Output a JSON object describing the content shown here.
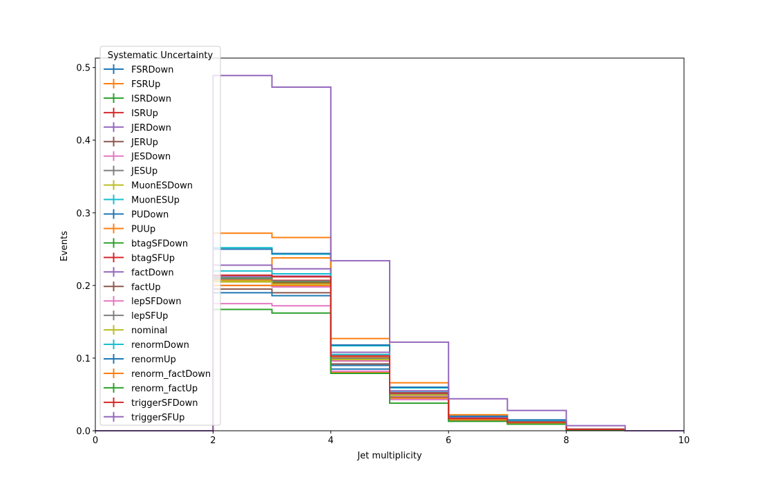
{
  "chart_data": {
    "type": "line",
    "drawstyle": "steps-post",
    "xlabel": "Jet multiplicity",
    "ylabel": "Events",
    "xlim": [
      0,
      10
    ],
    "ylim": [
      0,
      0.513
    ],
    "xticks": [
      "0",
      "2",
      "4",
      "6",
      "8",
      "10"
    ],
    "yticks": [
      "0.0",
      "0.1",
      "0.2",
      "0.3",
      "0.4",
      "0.5"
    ],
    "grid": false,
    "legend": {
      "title": "Systematic Uncertainty",
      "placement": "upper-left"
    },
    "bin_edges": [
      0,
      1,
      2,
      3,
      4,
      5,
      6,
      7,
      8,
      9,
      10
    ],
    "series": [
      {
        "name": "FSRDown",
        "color": "#1f77b4",
        "values": [
          0,
          0,
          0.2,
          0.2,
          0.085,
          0.048,
          0.017,
          0.012,
          0.002,
          0
        ]
      },
      {
        "name": "FSRUp",
        "color": "#ff7f0e",
        "values": [
          0,
          0,
          0.272,
          0.266,
          0.127,
          0.066,
          0.022,
          0.014,
          0.002,
          0
        ]
      },
      {
        "name": "ISRDown",
        "color": "#2ca02c",
        "values": [
          0,
          0,
          0.208,
          0.205,
          0.098,
          0.049,
          0.016,
          0.012,
          0.002,
          0
        ]
      },
      {
        "name": "ISRUp",
        "color": "#d62728",
        "values": [
          0,
          0,
          0.21,
          0.207,
          0.1,
          0.05,
          0.016,
          0.012,
          0.002,
          0
        ]
      },
      {
        "name": "JERDown",
        "color": "#9467bd",
        "values": [
          0,
          0,
          0.212,
          0.213,
          0.103,
          0.053,
          0.017,
          0.012,
          0.002,
          0
        ]
      },
      {
        "name": "JERUp",
        "color": "#8c564b",
        "values": [
          0,
          0,
          0.214,
          0.212,
          0.101,
          0.051,
          0.016,
          0.012,
          0.002,
          0
        ]
      },
      {
        "name": "JESDown",
        "color": "#e377c2",
        "values": [
          0,
          0,
          0.175,
          0.172,
          0.082,
          0.043,
          0.014,
          0.01,
          0.002,
          0
        ]
      },
      {
        "name": "JESUp",
        "color": "#7f7f7f",
        "values": [
          0,
          0,
          0.206,
          0.204,
          0.1,
          0.05,
          0.016,
          0.012,
          0.002,
          0
        ]
      },
      {
        "name": "MuonESDown",
        "color": "#bcbd22",
        "values": [
          0,
          0,
          0.207,
          0.204,
          0.099,
          0.05,
          0.016,
          0.012,
          0.002,
          0
        ]
      },
      {
        "name": "MuonESUp",
        "color": "#17becf",
        "values": [
          0,
          0,
          0.252,
          0.243,
          0.117,
          0.059,
          0.019,
          0.014,
          0.002,
          0
        ]
      },
      {
        "name": "PUDown",
        "color": "#1f77b4",
        "values": [
          0,
          0,
          0.25,
          0.244,
          0.118,
          0.06,
          0.02,
          0.015,
          0.002,
          0
        ]
      },
      {
        "name": "PUUp",
        "color": "#ff7f0e",
        "values": [
          0,
          0,
          0.208,
          0.238,
          0.101,
          0.05,
          0.016,
          0.012,
          0.002,
          0
        ]
      },
      {
        "name": "btagSFDown",
        "color": "#2ca02c",
        "values": [
          0,
          0,
          0.21,
          0.205,
          0.096,
          0.048,
          0.016,
          0.012,
          0.002,
          0
        ]
      },
      {
        "name": "btagSFUp",
        "color": "#d62728",
        "values": [
          0,
          0,
          0.205,
          0.203,
          0.097,
          0.049,
          0.016,
          0.012,
          0.002,
          0
        ]
      },
      {
        "name": "factDown",
        "color": "#9467bd",
        "values": [
          0,
          0,
          0.228,
          0.223,
          0.108,
          0.055,
          0.018,
          0.013,
          0.002,
          0
        ]
      },
      {
        "name": "factUp",
        "color": "#8c564b",
        "values": [
          0,
          0,
          0.195,
          0.19,
          0.092,
          0.046,
          0.015,
          0.011,
          0.002,
          0
        ]
      },
      {
        "name": "lepSFDown",
        "color": "#e377c2",
        "values": [
          0,
          0,
          0.2,
          0.198,
          0.096,
          0.048,
          0.016,
          0.012,
          0.002,
          0
        ]
      },
      {
        "name": "lepSFUp",
        "color": "#7f7f7f",
        "values": [
          0,
          0,
          0.209,
          0.206,
          0.1,
          0.05,
          0.016,
          0.012,
          0.002,
          0
        ]
      },
      {
        "name": "nominal",
        "color": "#bcbd22",
        "values": [
          0,
          0,
          0.205,
          0.202,
          0.098,
          0.049,
          0.016,
          0.012,
          0.002,
          0
        ]
      },
      {
        "name": "renormDown",
        "color": "#17becf",
        "values": [
          0,
          0,
          0.22,
          0.216,
          0.105,
          0.053,
          0.017,
          0.013,
          0.002,
          0
        ]
      },
      {
        "name": "renormUp",
        "color": "#1f77b4",
        "values": [
          0,
          0,
          0.19,
          0.186,
          0.09,
          0.045,
          0.015,
          0.011,
          0.002,
          0
        ]
      },
      {
        "name": "renorm_factDown",
        "color": "#ff7f0e",
        "values": [
          0,
          0,
          0.2,
          0.2,
          0.08,
          0.045,
          0.015,
          0.01,
          0.002,
          0
        ]
      },
      {
        "name": "renorm_factUp",
        "color": "#2ca02c",
        "values": [
          0,
          0,
          0.167,
          0.162,
          0.079,
          0.038,
          0.013,
          0.009,
          0.001,
          0
        ]
      },
      {
        "name": "triggerSFDown",
        "color": "#d62728",
        "values": [
          0,
          0,
          0.214,
          0.212,
          0.103,
          0.052,
          0.017,
          0.012,
          0.002,
          0
        ]
      },
      {
        "name": "triggerSFUp",
        "color": "#9467bd",
        "values": [
          0,
          0,
          0.489,
          0.473,
          0.234,
          0.122,
          0.044,
          0.028,
          0.007,
          0
        ]
      }
    ]
  }
}
